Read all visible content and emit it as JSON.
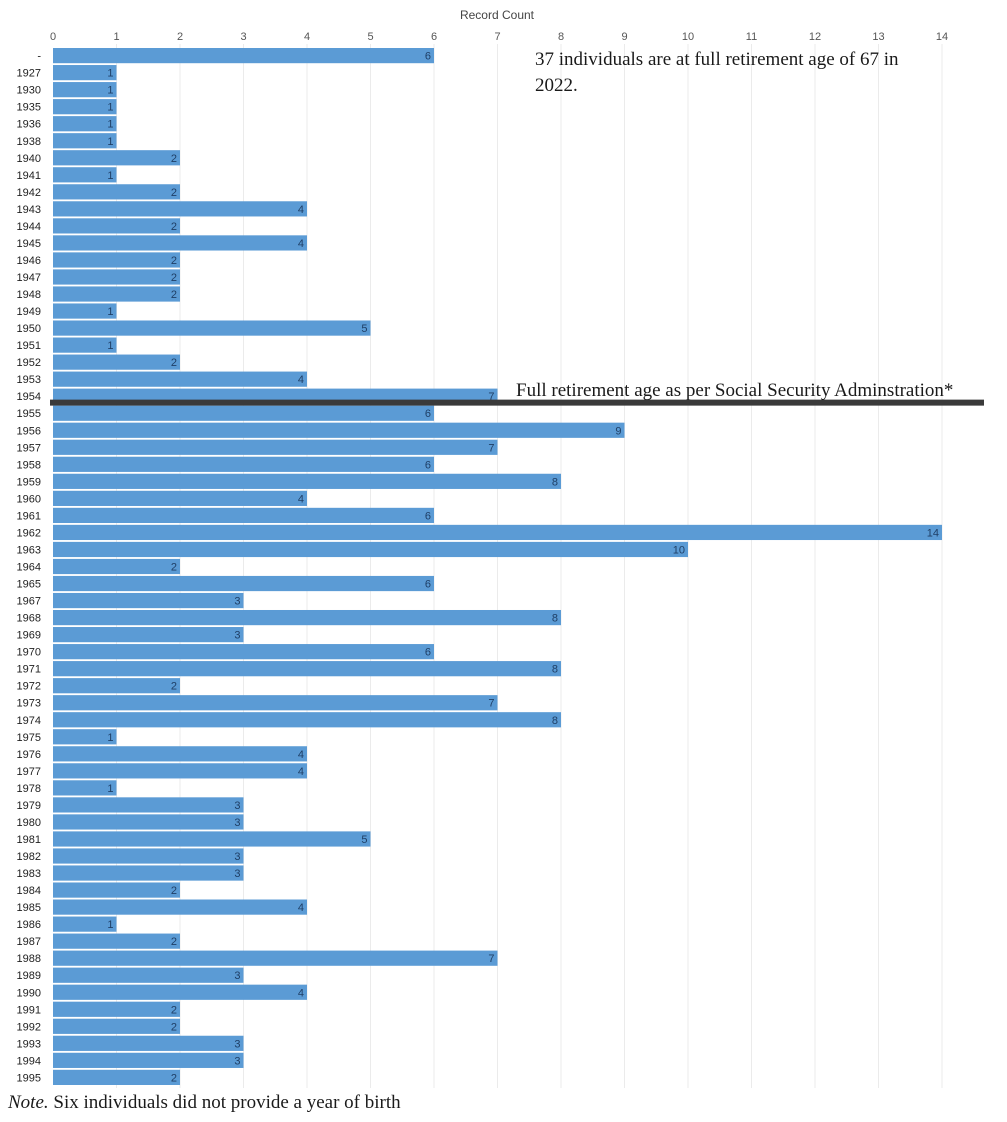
{
  "chart_data": {
    "type": "bar",
    "orientation": "horizontal",
    "xlabel": "Record Count",
    "xlim": [
      0,
      14
    ],
    "x_ticks": [
      "0",
      "1",
      "2",
      "3",
      "4",
      "5",
      "6",
      "7",
      "8",
      "9",
      "10",
      "11",
      "12",
      "13",
      "14"
    ],
    "grid": true,
    "bar_color": "#5b9bd5",
    "categories": [
      "-",
      "1927",
      "1930",
      "1935",
      "1936",
      "1938",
      "1940",
      "1941",
      "1942",
      "1943",
      "1944",
      "1945",
      "1946",
      "1947",
      "1948",
      "1949",
      "1950",
      "1951",
      "1952",
      "1953",
      "1954",
      "1955",
      "1956",
      "1957",
      "1958",
      "1959",
      "1960",
      "1961",
      "1962",
      "1963",
      "1964",
      "1965",
      "1967",
      "1968",
      "1969",
      "1970",
      "1971",
      "1972",
      "1973",
      "1974",
      "1975",
      "1976",
      "1977",
      "1978",
      "1979",
      "1980",
      "1981",
      "1982",
      "1983",
      "1984",
      "1985",
      "1986",
      "1987",
      "1988",
      "1989",
      "1990",
      "1991",
      "1992",
      "1993",
      "1994",
      "1995"
    ],
    "values": [
      6,
      1,
      1,
      1,
      1,
      1,
      2,
      1,
      2,
      4,
      2,
      4,
      2,
      2,
      2,
      1,
      5,
      1,
      2,
      4,
      7,
      6,
      9,
      7,
      6,
      8,
      4,
      6,
      14,
      10,
      2,
      6,
      3,
      8,
      3,
      6,
      8,
      2,
      7,
      8,
      1,
      4,
      4,
      1,
      3,
      3,
      5,
      3,
      3,
      2,
      4,
      1,
      2,
      7,
      3,
      4,
      2,
      2,
      3,
      3,
      2
    ],
    "reference_line": {
      "label": "Full retirement age as per Social Security Adminstration*",
      "between_categories": [
        "1954",
        "1955"
      ],
      "color": "#3a3a3a"
    },
    "annotations": [
      "37 individuals are at full retirement age of 67 in",
      "2022."
    ]
  },
  "note": {
    "prefix": "Note.",
    "text": " Six individuals did not provide a year of birth"
  }
}
